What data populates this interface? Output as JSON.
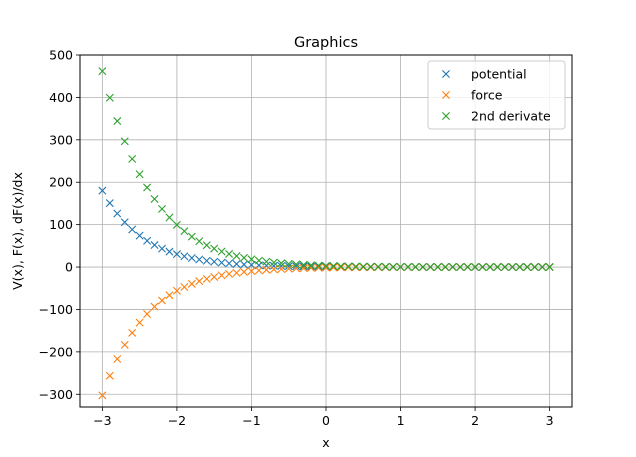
{
  "chart_data": {
    "type": "scatter",
    "title": "Graphics",
    "xlabel": "x",
    "ylabel": "V(x), F(x), dF(x)/dx",
    "xlim": [
      -3.3,
      3.3
    ],
    "ylim": [
      -330,
      500
    ],
    "xticks": [
      -3,
      -2,
      -1,
      0,
      1,
      2,
      3
    ],
    "xtick_labels": [
      "−3",
      "−2",
      "−1",
      "0",
      "1",
      "2",
      "3"
    ],
    "yticks": [
      -300,
      -200,
      -100,
      0,
      100,
      200,
      300,
      400,
      500
    ],
    "ytick_labels": [
      "−300",
      "−200",
      "−100",
      "0",
      "100",
      "200",
      "300",
      "400",
      "500"
    ],
    "grid": true,
    "legend": "top-right",
    "marker": "x",
    "x": [
      -3.0,
      -2.9,
      -2.8,
      -2.7,
      -2.6,
      -2.5,
      -2.4,
      -2.3,
      -2.2,
      -2.1,
      -2.0,
      -1.9,
      -1.8,
      -1.7,
      -1.6,
      -1.5,
      -1.4,
      -1.3,
      -1.2,
      -1.1,
      -1.0,
      -0.9,
      -0.8,
      -0.7,
      -0.6,
      -0.5,
      -0.4,
      -0.3,
      -0.2,
      -0.1,
      0.0,
      0.1,
      0.2,
      0.3,
      0.4,
      0.5,
      0.6,
      0.7,
      0.8,
      0.9,
      1.0,
      1.1,
      1.2,
      1.3,
      1.4,
      1.5,
      1.6,
      1.7,
      1.8,
      1.9,
      2.0,
      2.1,
      2.2,
      2.3,
      2.4,
      2.5,
      2.6,
      2.7,
      2.8,
      2.9,
      3.0
    ],
    "series": [
      {
        "name": "potential",
        "color": "#1f77b4",
        "values": [
          180.1,
          150.8,
          126.3,
          105.7,
          88.5,
          74.1,
          62.0,
          51.9,
          43.4,
          36.3,
          30.4,
          25.4,
          21.3,
          17.8,
          14.9,
          12.5,
          10.4,
          8.7,
          7.3,
          6.1,
          5.1,
          4.3,
          3.6,
          3.0,
          2.5,
          2.1,
          1.8,
          1.5,
          1.2,
          1.0,
          0.9,
          0.7,
          0.6,
          0.5,
          0.4,
          0.3,
          0.3,
          0.2,
          0.2,
          0.2,
          0.1,
          0.1,
          0.1,
          0.1,
          0.1,
          0.1,
          0.0,
          0.0,
          0.0,
          0.0,
          0.0,
          0.0,
          0.0,
          0.0,
          0.0,
          0.0,
          0.0,
          0.0,
          0.0,
          0.0,
          0.0
        ]
      },
      {
        "name": "force",
        "color": "#ff7f0e",
        "values": [
          -302.5,
          -256.2,
          -216.8,
          -183.5,
          -155.1,
          -131.1,
          -110.7,
          -93.4,
          -78.8,
          -66.4,
          -55.9,
          -47.1,
          -39.6,
          -33.3,
          -27.9,
          -23.4,
          -19.6,
          -16.4,
          -13.7,
          -11.5,
          -9.6,
          -8.0,
          -6.6,
          -5.5,
          -4.6,
          -3.8,
          -3.1,
          -2.6,
          -2.1,
          -1.7,
          -1.4,
          -1.2,
          -0.9,
          -0.8,
          -0.6,
          -0.5,
          -0.4,
          -0.3,
          -0.3,
          -0.2,
          -0.2,
          -0.2,
          -0.1,
          -0.1,
          -0.1,
          -0.1,
          -0.1,
          0.0,
          0.0,
          0.0,
          0.0,
          0.0,
          0.0,
          0.0,
          0.0,
          0.0,
          0.0,
          0.0,
          0.0,
          0.0,
          0.0
        ]
      },
      {
        "name": "2nd derivate",
        "color": "#2ca02c",
        "values": [
          462.0,
          399.2,
          344.3,
          296.5,
          254.9,
          218.8,
          187.5,
          160.4,
          137.0,
          116.8,
          99.5,
          84.6,
          71.8,
          60.8,
          51.5,
          43.5,
          36.7,
          30.9,
          26.0,
          21.8,
          18.3,
          15.3,
          12.8,
          10.7,
          8.9,
          7.4,
          6.2,
          5.1,
          4.2,
          3.5,
          2.9,
          2.4,
          2.0,
          1.6,
          1.3,
          1.1,
          0.9,
          0.7,
          0.6,
          0.5,
          0.4,
          0.3,
          0.3,
          0.2,
          0.2,
          0.1,
          0.1,
          0.1,
          0.1,
          0.1,
          0.0,
          0.0,
          0.0,
          0.0,
          0.0,
          0.0,
          0.0,
          0.0,
          0.0,
          0.0,
          0.0
        ]
      }
    ]
  }
}
